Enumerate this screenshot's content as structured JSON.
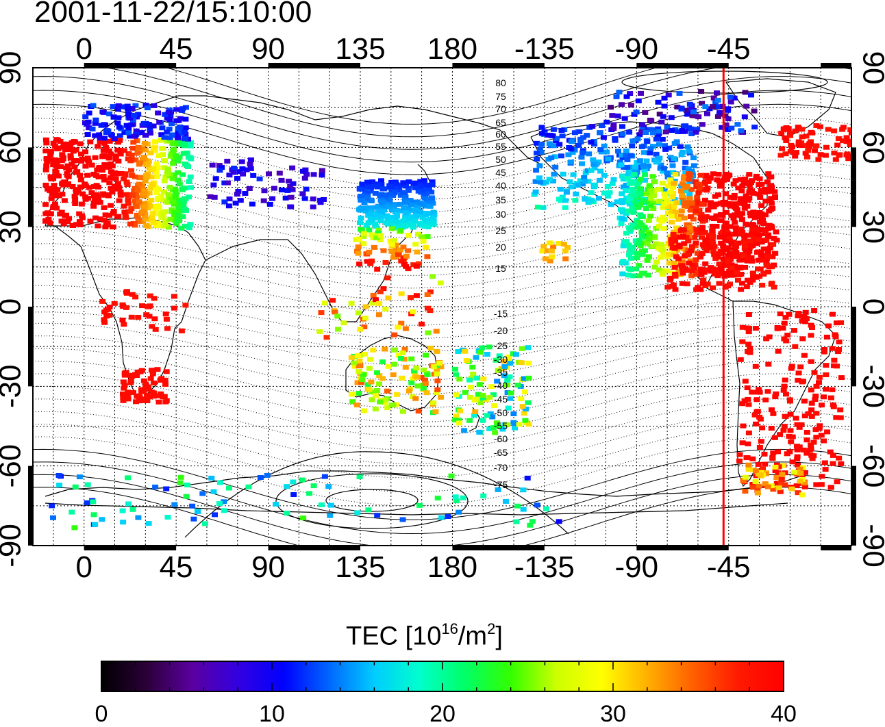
{
  "timestamp": "2001-11-22/15:10:00",
  "map": {
    "lon_ticks_labels": [
      "0",
      "45",
      "90",
      "135",
      "180",
      "-135",
      "-90",
      "-45"
    ],
    "lat_ticks_left_labels": [
      "90",
      "60",
      "30",
      "0",
      "-30",
      "-60",
      "-90"
    ],
    "lat_ticks_right_labels": [
      "90",
      "60",
      "30",
      "0",
      "-30",
      "-60",
      "-90"
    ],
    "magnetic_contour_labels_north": [
      "80",
      "75",
      "70",
      "65",
      "60",
      "55",
      "50",
      "45",
      "40",
      "35",
      "30",
      "25",
      "20",
      "15"
    ],
    "magnetic_contour_labels_south": [
      "-15",
      "-20",
      "-25",
      "-30",
      "-35",
      "-40",
      "-45",
      "-50",
      "-55",
      "-60",
      "-65",
      "-70",
      "-75"
    ],
    "terminator_longitude": -47.5,
    "lon_range": [
      -25,
      375
    ],
    "lat_range": [
      -90,
      90
    ]
  },
  "colorbar": {
    "title_prefix": "TEC  [10",
    "title_exp": "16",
    "title_mid": "/m",
    "title_exp2": "2",
    "title_suffix": "]",
    "tick_labels": [
      "0",
      "10",
      "20",
      "30",
      "40"
    ],
    "range": [
      0,
      40
    ],
    "stops": [
      "#000000",
      "#2b0038",
      "#5a00a0",
      "#3300e0",
      "#0000ff",
      "#0066ff",
      "#00ccff",
      "#00ffcc",
      "#00ff66",
      "#33ff00",
      "#ccff00",
      "#ffff00",
      "#ffb000",
      "#ff6000",
      "#ff1a00",
      "#ff0000"
    ]
  },
  "colors": {
    "terminator": "#ff0000",
    "grid": "#000000"
  }
}
